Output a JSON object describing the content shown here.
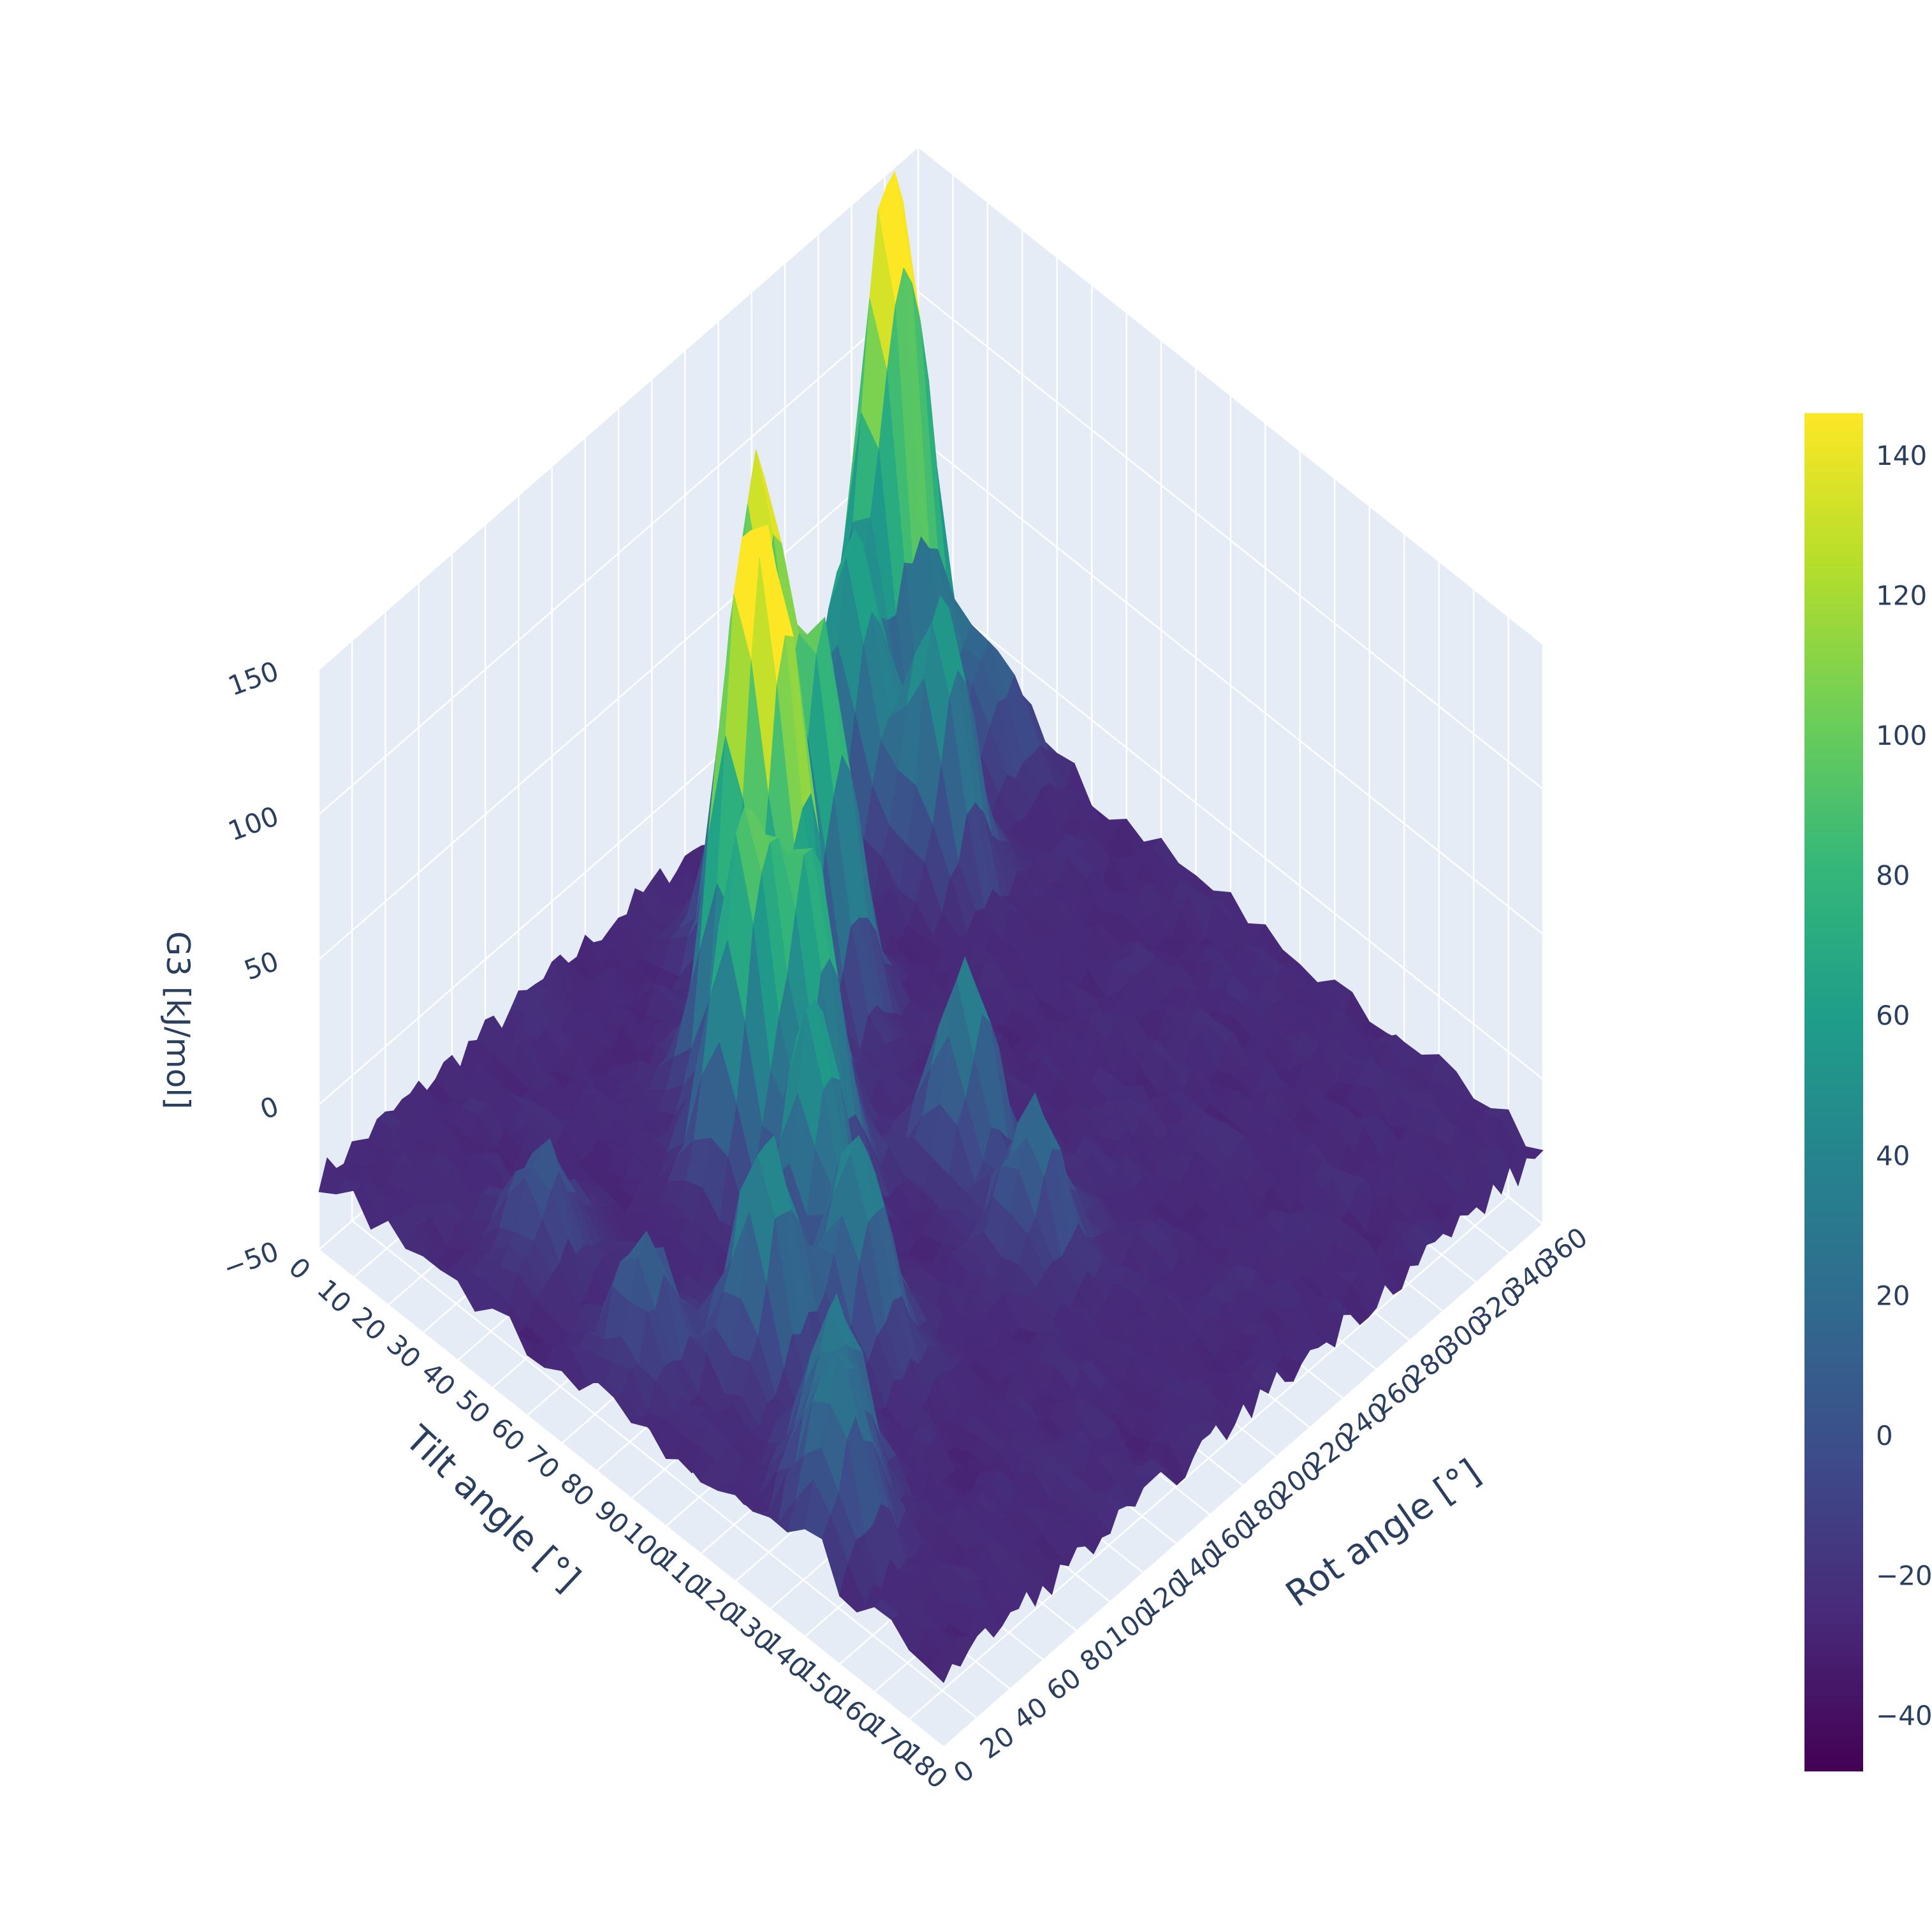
{
  "chart_data": {
    "type": "surface",
    "colorscale": "viridis",
    "colorscale_stops": [
      "#440154",
      "#482878",
      "#3e4989",
      "#31688e",
      "#26828e",
      "#1f9e89",
      "#35b779",
      "#6ece58",
      "#b5de2b",
      "#fde725"
    ],
    "x_axis": {
      "title": "Tilt angle [°]",
      "range": [
        0,
        180
      ],
      "ticks": [
        "0",
        "10",
        "20",
        "30",
        "40",
        "50",
        "60",
        "70",
        "80",
        "90",
        "100",
        "110",
        "120",
        "130",
        "140",
        "150",
        "160",
        "170",
        "180"
      ]
    },
    "y_axis": {
      "title": "Rot angle [°]",
      "range": [
        0,
        360
      ],
      "ticks": [
        "0",
        "20",
        "40",
        "60",
        "80",
        "100",
        "120",
        "140",
        "160",
        "180",
        "200",
        "220",
        "240",
        "260",
        "280",
        "300",
        "320",
        "340",
        "360"
      ]
    },
    "z_axis": {
      "title": "G3 [kJ/mol]",
      "range": [
        -50,
        150
      ],
      "ticks": [
        "−50",
        "0",
        "50",
        "100",
        "150"
      ]
    },
    "colorbar": {
      "range": [
        -48,
        146
      ],
      "ticks": [
        "−40",
        "−20",
        "0",
        "20",
        "40",
        "60",
        "80",
        "100",
        "120",
        "140"
      ],
      "tick_values": [
        -40,
        -20,
        0,
        20,
        40,
        60,
        80,
        100,
        120,
        140
      ]
    },
    "surface_baseline": -25,
    "peaks": [
      {
        "tilt": 10,
        "rot": 330,
        "z": 115
      },
      {
        "tilt": 12,
        "rot": 312,
        "z": 108
      },
      {
        "tilt": 20,
        "rot": 280,
        "z": 78
      },
      {
        "tilt": 40,
        "rot": 290,
        "z": 70
      },
      {
        "tilt": 30,
        "rot": 200,
        "z": 148
      },
      {
        "tilt": 45,
        "rot": 210,
        "z": 95
      },
      {
        "tilt": 50,
        "rot": 150,
        "z": 146
      },
      {
        "tilt": 60,
        "rot": 160,
        "z": 108
      },
      {
        "tilt": 65,
        "rot": 120,
        "z": 102
      },
      {
        "tilt": 75,
        "rot": 140,
        "z": 80
      },
      {
        "tilt": 90,
        "rot": 110,
        "z": 70
      },
      {
        "tilt": 100,
        "rot": 60,
        "z": 55
      },
      {
        "tilt": 110,
        "rot": 95,
        "z": 48
      },
      {
        "tilt": 95,
        "rot": 190,
        "z": 45
      },
      {
        "tilt": 130,
        "rot": 40,
        "z": 35
      },
      {
        "tilt": 140,
        "rot": 20,
        "z": 30
      },
      {
        "tilt": 120,
        "rot": 180,
        "z": 25
      },
      {
        "tilt": 30,
        "rot": 340,
        "z": 20
      },
      {
        "tilt": 5,
        "rot": 345,
        "z": 5
      },
      {
        "tilt": 45,
        "rot": 40,
        "z": 10
      },
      {
        "tilt": 80,
        "rot": 30,
        "z": 15
      }
    ],
    "grid": true,
    "legend": "colorbar-right"
  }
}
